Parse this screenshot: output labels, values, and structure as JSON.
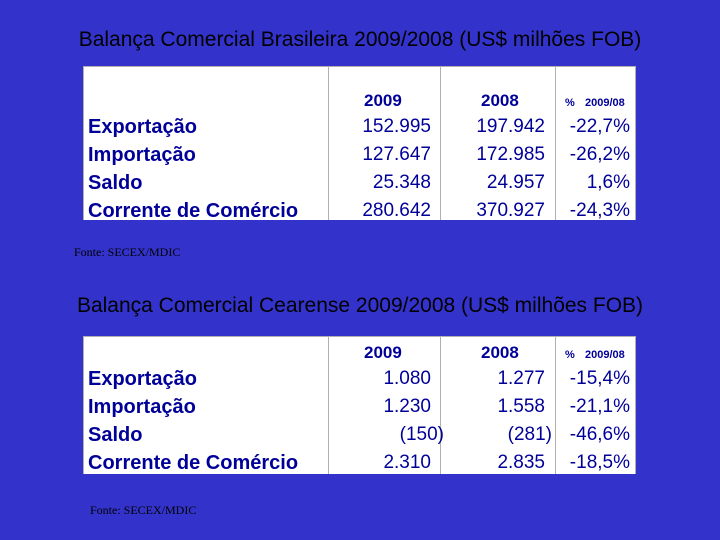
{
  "tables": [
    {
      "title": "Balança Comercial Brasileira 2009/2008 (US$ milhões FOB)",
      "columns": [
        "2009",
        "2008",
        "%",
        "2009/08"
      ],
      "rows": [
        {
          "label": "Exportação",
          "v2009": "152.995",
          "v2008": "197.942",
          "pct": "-22,7%"
        },
        {
          "label": "Importação",
          "v2009": "127.647",
          "v2008": "172.985",
          "pct": "-26,2%"
        },
        {
          "label": "Saldo",
          "v2009": "25.348",
          "v2008": "24.957",
          "pct": "1,6%"
        },
        {
          "label": "Corrente de Comércio",
          "v2009": "280.642",
          "v2008": "370.927",
          "pct": "-24,3%"
        }
      ],
      "source": "Fonte: SECEX/MDIC"
    },
    {
      "title": "Balança Comercial Cearense 2009/2008  (US$ milhões FOB)",
      "columns": [
        "2009",
        "2008",
        "%",
        "2009/08"
      ],
      "rows": [
        {
          "label": "Exportação",
          "v2009": "1.080",
          "v2008": "1.277",
          "pct": "-15,4%"
        },
        {
          "label": "Importação",
          "v2009": "1.230",
          "v2008": "1.558",
          "pct": "-21,1%"
        },
        {
          "label": "Saldo",
          "v2009": "(150)",
          "v2008": "(281)",
          "pct": "-46,6%"
        },
        {
          "label": "Corrente de Comércio",
          "v2009": "2.310",
          "v2008": "2.835",
          "pct": "-18,5%"
        }
      ],
      "source": "Fonte: SECEX/MDIC"
    }
  ],
  "colors": {
    "background": "#3333cc",
    "table_text": "#000099",
    "table_bg": "#ffffff"
  }
}
